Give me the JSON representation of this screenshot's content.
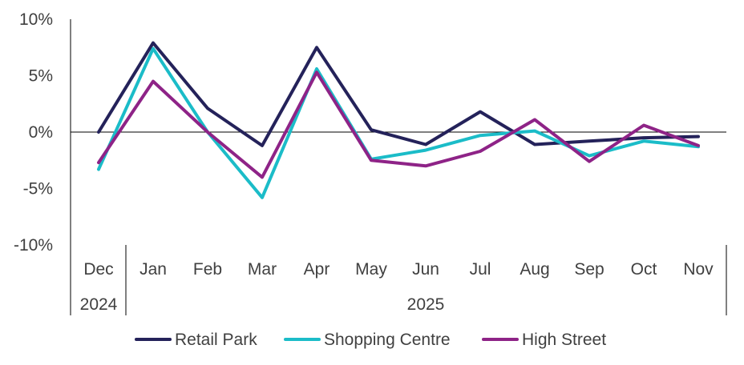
{
  "chart_data": {
    "type": "line",
    "title": "",
    "xlabel": "",
    "ylabel": "",
    "categories": [
      "Dec",
      "Jan",
      "Feb",
      "Mar",
      "Apr",
      "May",
      "Jun",
      "Jul",
      "Aug",
      "Sep",
      "Oct",
      "Nov"
    ],
    "year_groups": [
      {
        "label": "2024",
        "start": 0,
        "end": 0
      },
      {
        "label": "2025",
        "start": 1,
        "end": 11
      }
    ],
    "ylim": [
      -10,
      10
    ],
    "yticks": [
      10,
      5,
      0,
      -5,
      -10
    ],
    "ytick_labels": [
      "10%",
      "5%",
      "0%",
      "-5%",
      "-10%"
    ],
    "grid": false,
    "legend_position": "bottom",
    "series": [
      {
        "name": "Retail Park",
        "color": "#24225a",
        "values": [
          0.0,
          7.9,
          2.1,
          -1.2,
          7.5,
          0.2,
          -1.1,
          1.8,
          -1.1,
          -0.8,
          -0.5,
          -0.4
        ]
      },
      {
        "name": "Shopping Centre",
        "color": "#1bbcc8",
        "values": [
          -3.3,
          7.4,
          0.0,
          -5.8,
          5.6,
          -2.4,
          -1.6,
          -0.3,
          0.1,
          -2.1,
          -0.8,
          -1.3
        ]
      },
      {
        "name": "High Street",
        "color": "#8e2387",
        "values": [
          -2.7,
          4.5,
          0.0,
          -4.0,
          5.3,
          -2.5,
          -3.0,
          -1.7,
          1.1,
          -2.6,
          0.6,
          -1.2
        ]
      }
    ]
  }
}
